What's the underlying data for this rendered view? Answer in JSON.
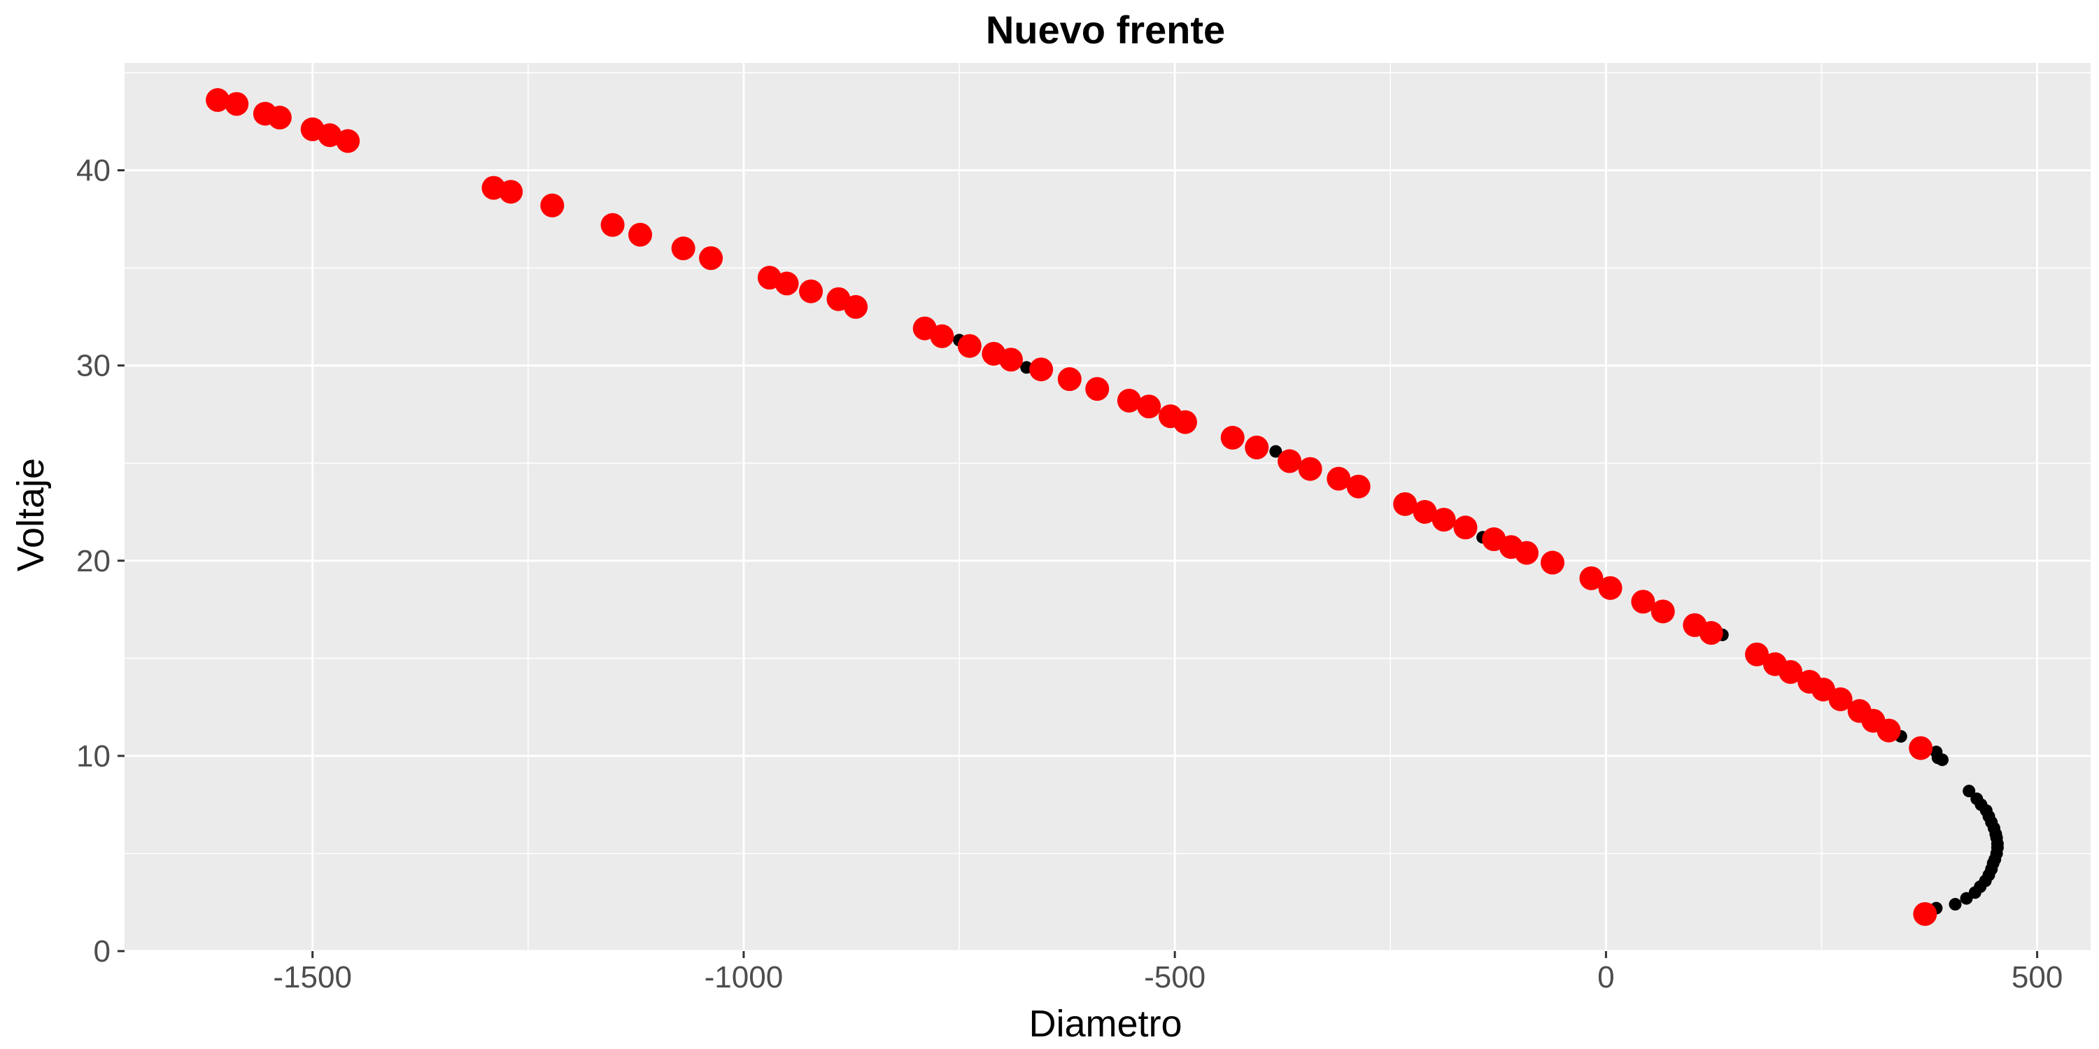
{
  "chart_data": {
    "type": "scatter",
    "title": "Nuevo frente",
    "xlabel": "Diametro",
    "ylabel": "Voltaje",
    "xlim": [
      -1718,
      562
    ],
    "ylim": [
      0,
      45.5
    ],
    "x_ticks": [
      -1500,
      -1000,
      -500,
      0,
      500
    ],
    "x_tick_labels": [
      "-1500",
      "-1000",
      "-500",
      "0",
      "500"
    ],
    "y_ticks": [
      0,
      10,
      20,
      30,
      40
    ],
    "y_tick_labels": [
      "0",
      "10",
      "20",
      "30",
      "40"
    ],
    "grid": true,
    "background": "#ebebeb",
    "grid_major_color": "#ffffff",
    "legend": "none",
    "series": [
      {
        "color": "#000000",
        "marker_size": "small",
        "points": [
          [
            -750,
            31.3
          ],
          [
            -672,
            29.9
          ],
          [
            -383,
            25.6
          ],
          [
            -143,
            21.2
          ],
          [
            105,
            16.6
          ],
          [
            135,
            16.2
          ],
          [
            342,
            11.0
          ],
          [
            383,
            2.2
          ],
          [
            383,
            10.2
          ],
          [
            385,
            9.9
          ],
          [
            390,
            9.8
          ],
          [
            405,
            2.4
          ],
          [
            418,
            2.7
          ],
          [
            421,
            8.2
          ],
          [
            428,
            3.0
          ],
          [
            430,
            7.8
          ],
          [
            434,
            3.3
          ],
          [
            435,
            7.5
          ],
          [
            440,
            3.6
          ],
          [
            441,
            7.2
          ],
          [
            444,
            3.9
          ],
          [
            444,
            6.9
          ],
          [
            447,
            4.2
          ],
          [
            447,
            6.6
          ],
          [
            449,
            4.5
          ],
          [
            450,
            6.3
          ],
          [
            451,
            4.7
          ],
          [
            452,
            6.0
          ],
          [
            453,
            5.0
          ],
          [
            453,
            5.8
          ],
          [
            454,
            5.3
          ],
          [
            454,
            5.5
          ]
        ]
      },
      {
        "color": "#ff0000",
        "marker_size": "large",
        "points": [
          [
            -1610,
            43.6
          ],
          [
            -1588,
            43.4
          ],
          [
            -1555,
            42.9
          ],
          [
            -1538,
            42.7
          ],
          [
            -1500,
            42.1
          ],
          [
            -1480,
            41.8
          ],
          [
            -1459,
            41.5
          ],
          [
            -1290,
            39.1
          ],
          [
            -1270,
            38.9
          ],
          [
            -1222,
            38.2
          ],
          [
            -1152,
            37.2
          ],
          [
            -1120,
            36.7
          ],
          [
            -1070,
            36.0
          ],
          [
            -1038,
            35.5
          ],
          [
            -970,
            34.5
          ],
          [
            -950,
            34.2
          ],
          [
            -922,
            33.8
          ],
          [
            -890,
            33.4
          ],
          [
            -870,
            33.0
          ],
          [
            -790,
            31.9
          ],
          [
            -770,
            31.5
          ],
          [
            -738,
            31.0
          ],
          [
            -710,
            30.6
          ],
          [
            -690,
            30.3
          ],
          [
            -655,
            29.8
          ],
          [
            -622,
            29.3
          ],
          [
            -590,
            28.8
          ],
          [
            -553,
            28.2
          ],
          [
            -530,
            27.9
          ],
          [
            -505,
            27.4
          ],
          [
            -488,
            27.1
          ],
          [
            -433,
            26.3
          ],
          [
            -405,
            25.8
          ],
          [
            -367,
            25.1
          ],
          [
            -343,
            24.7
          ],
          [
            -310,
            24.2
          ],
          [
            -287,
            23.8
          ],
          [
            -233,
            22.9
          ],
          [
            -210,
            22.5
          ],
          [
            -188,
            22.1
          ],
          [
            -163,
            21.7
          ],
          [
            -130,
            21.1
          ],
          [
            -110,
            20.7
          ],
          [
            -92,
            20.4
          ],
          [
            -62,
            19.9
          ],
          [
            -17,
            19.1
          ],
          [
            5,
            18.6
          ],
          [
            43,
            17.9
          ],
          [
            66,
            17.4
          ],
          [
            103,
            16.7
          ],
          [
            122,
            16.3
          ],
          [
            175,
            15.2
          ],
          [
            196,
            14.7
          ],
          [
            214,
            14.3
          ],
          [
            236,
            13.8
          ],
          [
            252,
            13.4
          ],
          [
            272,
            12.9
          ],
          [
            294,
            12.3
          ],
          [
            310,
            11.8
          ],
          [
            328,
            11.3
          ],
          [
            365,
            10.4
          ],
          [
            370,
            1.9
          ]
        ]
      }
    ]
  }
}
